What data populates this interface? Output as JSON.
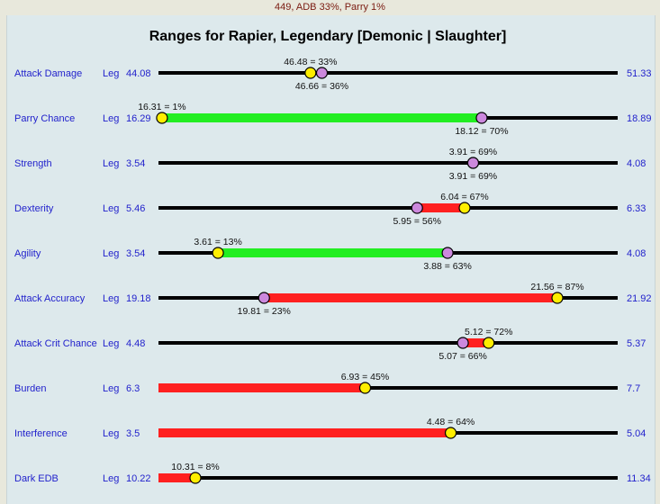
{
  "caption": "449, ADB 33%, Parry 1%",
  "chart_data": {
    "type": "range",
    "title": "Ranges for Rapier, Legendary [Demonic | Slaughter]",
    "colors": {
      "green": "#22ee22",
      "red": "#ff2020",
      "yellow_marker": "#ffee00",
      "purple_marker": "#cc88dd",
      "label_blue": "#2222cc"
    },
    "rows": [
      {
        "name": "Attack Damage",
        "grade": "Leg",
        "min": 44.08,
        "max": 51.33,
        "min_label": "44.08",
        "max_label": "51.33",
        "yellow": 46.48,
        "yellow_label": "46.48 = 33%",
        "purple": 46.66,
        "purple_label": "46.66 = 36%",
        "bar_color": "none"
      },
      {
        "name": "Parry Chance",
        "grade": "Leg",
        "min": 16.29,
        "max": 18.89,
        "min_label": "16.29",
        "max_label": "18.89",
        "yellow": 16.31,
        "yellow_label": "16.31 = 1%",
        "purple": 18.12,
        "purple_label": "18.12 = 70%",
        "bar_color": "green"
      },
      {
        "name": "Strength",
        "grade": "Leg",
        "min": 3.54,
        "max": 4.08,
        "min_label": "3.54",
        "max_label": "4.08",
        "yellow": 3.91,
        "yellow_label": "3.91 = 69%",
        "purple": 3.91,
        "purple_label": "3.91 = 69%",
        "bar_color": "none"
      },
      {
        "name": "Dexterity",
        "grade": "Leg",
        "min": 5.46,
        "max": 6.33,
        "min_label": "5.46",
        "max_label": "6.33",
        "yellow": 6.04,
        "yellow_label": "6.04 = 67%",
        "purple": 5.95,
        "purple_label": "5.95 = 56%",
        "bar_color": "red"
      },
      {
        "name": "Agility",
        "grade": "Leg",
        "min": 3.54,
        "max": 4.08,
        "min_label": "3.54",
        "max_label": "4.08",
        "yellow": 3.61,
        "yellow_label": "3.61 = 13%",
        "purple": 3.88,
        "purple_label": "3.88 = 63%",
        "bar_color": "green"
      },
      {
        "name": "Attack Accuracy",
        "grade": "Leg",
        "min": 19.18,
        "max": 21.92,
        "min_label": "19.18",
        "max_label": "21.92",
        "yellow": 21.56,
        "yellow_label": "21.56 = 87%",
        "purple": 19.81,
        "purple_label": "19.81 = 23%",
        "bar_color": "red"
      },
      {
        "name": "Attack Crit Chance",
        "grade": "Leg",
        "min": 4.48,
        "max": 5.37,
        "min_label": "4.48",
        "max_label": "5.37",
        "yellow": 5.12,
        "yellow_label": "5.12 = 72%",
        "purple": 5.07,
        "purple_label": "5.07 = 66%",
        "bar_color": "red"
      },
      {
        "name": "Burden",
        "grade": "Leg",
        "min": 6.3,
        "max": 7.7,
        "min_label": "6.3",
        "max_label": "7.7",
        "yellow": 6.93,
        "yellow_label": "6.93 = 45%",
        "purple": null,
        "purple_label": "",
        "bar_color": "red"
      },
      {
        "name": "Interference",
        "grade": "Leg",
        "min": 3.5,
        "max": 5.04,
        "min_label": "3.5",
        "max_label": "5.04",
        "yellow": 4.48,
        "yellow_label": "4.48 = 64%",
        "purple": null,
        "purple_label": "",
        "bar_color": "red"
      },
      {
        "name": "Dark EDB",
        "grade": "Leg",
        "min": 10.22,
        "max": 11.34,
        "min_label": "10.22",
        "max_label": "11.34",
        "yellow": 10.31,
        "yellow_label": "10.31 = 8%",
        "purple": null,
        "purple_label": "",
        "bar_color": "red"
      }
    ]
  }
}
